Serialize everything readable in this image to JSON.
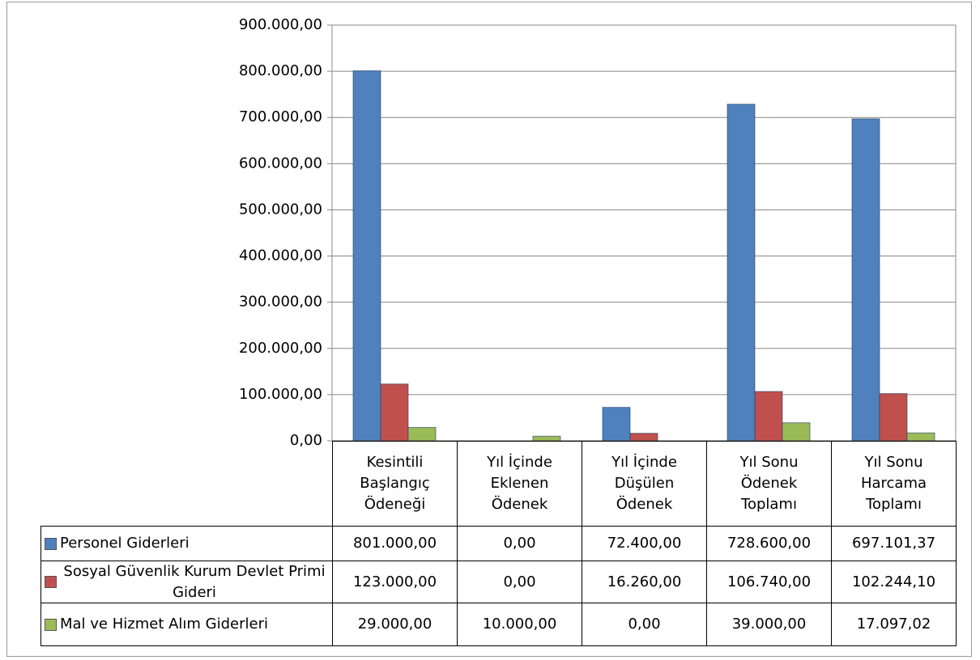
{
  "chart_data": {
    "type": "bar",
    "categories": [
      "Kesintili Başlangıç Ödeneği",
      "Yıl İçinde Eklenen Ödenek",
      "Yıl İçinde Düşülen Ödenek",
      "Yıl Sonu Ödenek Toplamı",
      "Yıl Sonu Harcama Toplamı"
    ],
    "series": [
      {
        "name": "Personel Giderleri",
        "color": "#4f81bd",
        "values": [
          801000,
          0,
          72400,
          728600,
          697101.37
        ],
        "value_labels": [
          "801.000,00",
          "0,00",
          "72.400,00",
          "728.600,00",
          "697.101,37"
        ]
      },
      {
        "name": "Sosyal Güvenlik Kurum Devlet Primi Gideri",
        "color": "#c0504d",
        "values": [
          123000,
          0,
          16260,
          106740,
          102244.1
        ],
        "value_labels": [
          "123.000,00",
          "0,00",
          "16.260,00",
          "106.740,00",
          "102.244,10"
        ]
      },
      {
        "name": "Mal ve Hizmet Alım Giderleri",
        "color": "#9bbb59",
        "values": [
          29000,
          10000,
          0,
          39000,
          17097.02
        ],
        "value_labels": [
          "29.000,00",
          "10.000,00",
          "0,00",
          "39.000,00",
          "17.097,02"
        ]
      }
    ],
    "ylim": [
      0,
      900000
    ],
    "yticks": [
      {
        "value": 0,
        "label": "0,00"
      },
      {
        "value": 100000,
        "label": "100.000,00"
      },
      {
        "value": 200000,
        "label": "200.000,00"
      },
      {
        "value": 300000,
        "label": "300.000,00"
      },
      {
        "value": 400000,
        "label": "400.000,00"
      },
      {
        "value": 500000,
        "label": "500.000,00"
      },
      {
        "value": 600000,
        "label": "600.000,00"
      },
      {
        "value": 700000,
        "label": "700.000,00"
      },
      {
        "value": 800000,
        "label": "800.000,00"
      },
      {
        "value": 900000,
        "label": "900.000,00"
      }
    ],
    "grid": true
  }
}
